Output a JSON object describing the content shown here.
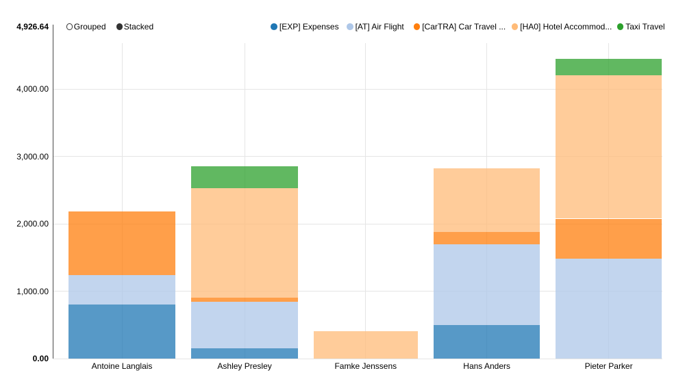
{
  "chart_data": {
    "type": "bar",
    "stacked": true,
    "title": "",
    "xlabel": "",
    "ylabel": "",
    "grid": true,
    "legend_position": "top-right",
    "background_color": "#ffffff",
    "gridline_color": "#e5e5e5",
    "axis_line_color": "rgba(0,0,0,0.72)",
    "bar_fill_opacity": 0.75,
    "categories": [
      "Antoine Langlais",
      "Ashley Presley",
      "Famke Jenssens",
      "Hans Anders",
      "Pieter Parker"
    ],
    "series": [
      {
        "name": "[EXP] Expenses",
        "color": "#1f77b4",
        "values": [
          803.83,
          150.4,
          0,
          497.95,
          0
        ]
      },
      {
        "name": "[AT] Air Flight",
        "color": "#aec7e8",
        "values": [
          434.94,
          695.1,
          0,
          1199.14,
          1487.75
        ]
      },
      {
        "name": "[CarTRA] Car Travel ...",
        "color": "#ff7f0e",
        "values": [
          946.1,
          55.89,
          0,
          177.84,
          590.42
        ]
      },
      {
        "name": "[HA0] Hotel Accommod...",
        "color": "#ffbb78",
        "values": [
          0,
          1626.97,
          401.41,
          951.18,
          2131.02
        ]
      },
      {
        "name": "Taxi Travel",
        "color": "#2ca02c",
        "values": [
          0,
          331.29,
          0,
          0,
          236.78
        ]
      }
    ],
    "y_axis": {
      "min": 0,
      "max": 4926.64,
      "max_label": "4,926.64",
      "min_label": "0.00",
      "tick_values": [
        0,
        1000,
        2000,
        3000,
        4000
      ],
      "tick_labels": [
        "0.00",
        "1,000.00",
        "2,000.00",
        "3,000.00",
        "4,000.00"
      ]
    }
  },
  "controls": [
    {
      "label": "Grouped",
      "selected": false
    },
    {
      "label": "Stacked",
      "selected": true
    }
  ]
}
